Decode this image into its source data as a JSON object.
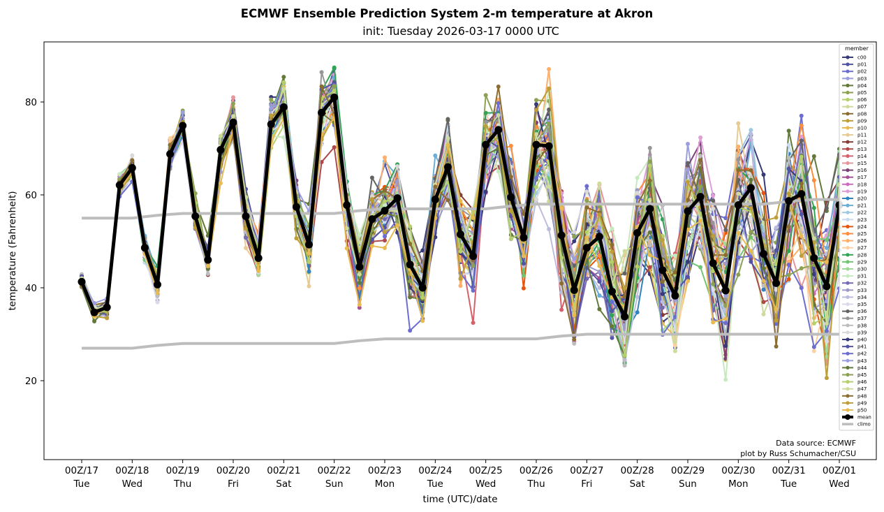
{
  "chart_data": {
    "type": "line",
    "title": "ECMWF Ensemble Prediction System 2-m temperature at Akron",
    "subtitle": "init: Tuesday 2026-03-17 0000 UTC",
    "xlabel": "time (UTC)/date",
    "ylabel": "temperature (Fahrenheit)",
    "ylim": [
      3.5,
      93
    ],
    "yticks": [
      20,
      40,
      60,
      80
    ],
    "time_step_hours": 6,
    "n_times": 61,
    "xticks": [
      {
        "step": 0,
        "line1": "00Z/17",
        "line2": "Tue"
      },
      {
        "step": 4,
        "line1": "00Z/18",
        "line2": "Wed"
      },
      {
        "step": 8,
        "line1": "00Z/19",
        "line2": "Thu"
      },
      {
        "step": 12,
        "line1": "00Z/20",
        "line2": "Fri"
      },
      {
        "step": 16,
        "line1": "00Z/21",
        "line2": "Sat"
      },
      {
        "step": 20,
        "line1": "00Z/22",
        "line2": "Sun"
      },
      {
        "step": 24,
        "line1": "00Z/23",
        "line2": "Mon"
      },
      {
        "step": 28,
        "line1": "00Z/24",
        "line2": "Tue"
      },
      {
        "step": 32,
        "line1": "00Z/25",
        "line2": "Wed"
      },
      {
        "step": 36,
        "line1": "00Z/26",
        "line2": "Thu"
      },
      {
        "step": 40,
        "line1": "00Z/27",
        "line2": "Fri"
      },
      {
        "step": 44,
        "line1": "00Z/28",
        "line2": "Sat"
      },
      {
        "step": 48,
        "line1": "00Z/29",
        "line2": "Sun"
      },
      {
        "step": 52,
        "line1": "00Z/30",
        "line2": "Mon"
      },
      {
        "step": 56,
        "line1": "00Z/31",
        "line2": "Tue"
      },
      {
        "step": 60,
        "line1": "00Z/01",
        "line2": "Wed"
      }
    ],
    "mean": [
      41.3,
      34.7,
      35.8,
      62.1,
      65.8,
      48.6,
      40.7,
      68.8,
      74.9,
      55.4,
      46.0,
      69.7,
      75.6,
      55.4,
      46.4,
      75.2,
      78.9,
      57.4,
      49.3,
      77.7,
      81.0,
      57.8,
      44.5,
      54.8,
      56.6,
      59.3,
      45.0,
      40.0,
      59.0,
      66.0,
      51.5,
      46.8,
      70.8,
      74.0,
      59.5,
      50.8,
      70.8,
      70.5,
      51.3,
      39.5,
      48.6,
      51.0,
      39.2,
      33.8,
      51.8,
      57.0,
      43.8,
      38.3,
      56.5,
      59.6,
      45.3,
      39.4,
      57.8,
      61.5,
      47.3,
      41.0,
      58.7,
      60.2,
      46.4,
      40.3,
      57.8
    ],
    "climo_high": [
      55,
      55,
      55,
      55,
      55,
      55.3,
      55.6,
      55.8,
      56,
      56,
      56,
      56,
      56,
      56,
      56,
      56,
      56,
      56,
      56,
      56,
      56,
      56.3,
      56.6,
      56.8,
      57,
      57,
      57,
      57,
      57,
      57,
      57,
      57,
      57,
      57.3,
      57.6,
      57.8,
      58,
      58,
      58,
      58,
      58,
      58,
      58,
      58,
      58,
      58,
      58,
      58,
      58,
      58,
      58,
      58,
      58,
      58,
      58,
      58.3,
      58.6,
      58.8,
      59,
      59,
      59
    ],
    "climo_low": [
      27,
      27,
      27,
      27,
      27,
      27.3,
      27.6,
      27.8,
      28,
      28,
      28,
      28,
      28,
      28,
      28,
      28,
      28,
      28,
      28,
      28,
      28,
      28.3,
      28.6,
      28.8,
      29,
      29,
      29,
      29,
      29,
      29,
      29,
      29,
      29,
      29,
      29,
      29,
      29,
      29.3,
      29.6,
      29.8,
      30,
      30,
      30,
      30,
      30,
      30,
      30,
      30,
      30,
      30,
      30,
      30,
      30,
      30,
      30,
      30,
      30,
      30,
      30,
      30,
      30
    ],
    "legend": {
      "title": "member",
      "position": "upper-right",
      "mean_label": "mean",
      "climo_label": "climo"
    },
    "mean_color": "#000000",
    "climo_color": "#bdbdbd",
    "members": [
      {
        "name": "c00",
        "color": "#393b79"
      },
      {
        "name": "p01",
        "color": "#5254a3"
      },
      {
        "name": "p02",
        "color": "#6b6ecf"
      },
      {
        "name": "p03",
        "color": "#9c9ede"
      },
      {
        "name": "p04",
        "color": "#637939"
      },
      {
        "name": "p05",
        "color": "#8ca252"
      },
      {
        "name": "p06",
        "color": "#b5cf6b"
      },
      {
        "name": "p07",
        "color": "#cedb9c"
      },
      {
        "name": "p08",
        "color": "#8c6d31"
      },
      {
        "name": "p09",
        "color": "#bd9e39"
      },
      {
        "name": "p10",
        "color": "#e7ba52"
      },
      {
        "name": "p11",
        "color": "#e7cb94"
      },
      {
        "name": "p12",
        "color": "#843c39"
      },
      {
        "name": "p13",
        "color": "#ad494a"
      },
      {
        "name": "p14",
        "color": "#d6616b"
      },
      {
        "name": "p15",
        "color": "#e7969c"
      },
      {
        "name": "p16",
        "color": "#7b4173"
      },
      {
        "name": "p17",
        "color": "#a55194"
      },
      {
        "name": "p18",
        "color": "#ce6dbd"
      },
      {
        "name": "p19",
        "color": "#de9ed6"
      },
      {
        "name": "p20",
        "color": "#3182bd"
      },
      {
        "name": "p21",
        "color": "#6baed6"
      },
      {
        "name": "p22",
        "color": "#9ecae1"
      },
      {
        "name": "p23",
        "color": "#c6dbef"
      },
      {
        "name": "p24",
        "color": "#e6550d"
      },
      {
        "name": "p25",
        "color": "#fd8d3c"
      },
      {
        "name": "p26",
        "color": "#fdae6b"
      },
      {
        "name": "p27",
        "color": "#fdd0a2"
      },
      {
        "name": "p28",
        "color": "#31a354"
      },
      {
        "name": "p29",
        "color": "#74c476"
      },
      {
        "name": "p30",
        "color": "#a1d99b"
      },
      {
        "name": "p31",
        "color": "#c7e9c0"
      },
      {
        "name": "p32",
        "color": "#756bb1"
      },
      {
        "name": "p33",
        "color": "#9e9ac8"
      },
      {
        "name": "p34",
        "color": "#bcbddc"
      },
      {
        "name": "p35",
        "color": "#dadaeb"
      },
      {
        "name": "p36",
        "color": "#636363"
      },
      {
        "name": "p37",
        "color": "#969696"
      },
      {
        "name": "p38",
        "color": "#bdbdbd"
      },
      {
        "name": "p39",
        "color": "#d9d9d9"
      },
      {
        "name": "p40",
        "color": "#393b79"
      },
      {
        "name": "p41",
        "color": "#5254a3"
      },
      {
        "name": "p42",
        "color": "#6b6ecf"
      },
      {
        "name": "p43",
        "color": "#9c9ede"
      },
      {
        "name": "p44",
        "color": "#637939"
      },
      {
        "name": "p45",
        "color": "#8ca252"
      },
      {
        "name": "p46",
        "color": "#b5cf6b"
      },
      {
        "name": "p47",
        "color": "#cedb9c"
      },
      {
        "name": "p48",
        "color": "#8c6d31"
      },
      {
        "name": "p49",
        "color": "#bd9e39"
      },
      {
        "name": "p50",
        "color": "#e7ba52"
      }
    ],
    "annotations": [
      "Data source: ECMWF",
      "plot by Russ Schumacher/CSU"
    ]
  }
}
